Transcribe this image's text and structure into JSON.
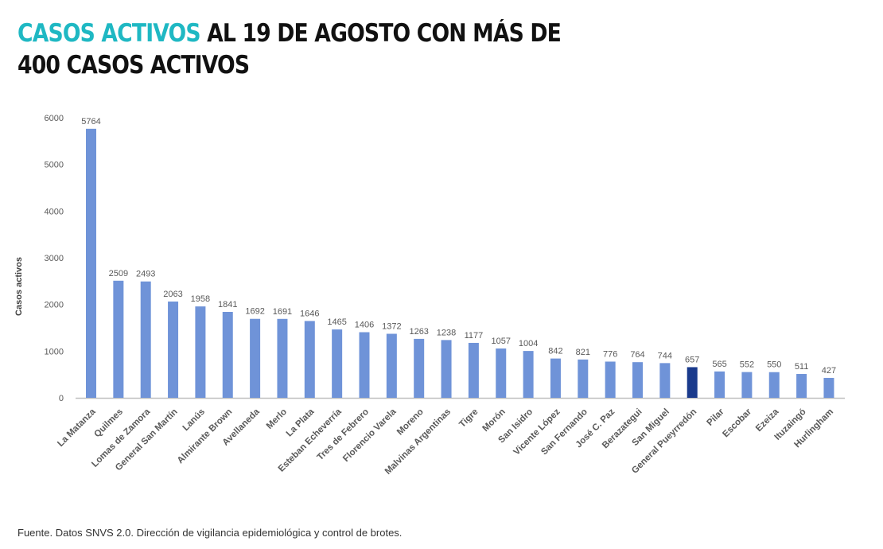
{
  "header": {
    "title_accent": "CASOS ACTIVOS",
    "title_rest_line1": "AL 19 DE AGOSTO CON MÁS DE",
    "title_line2": "400 CASOS ACTIVOS"
  },
  "footer": {
    "source": "Fuente. Datos SNVS 2.0. Dirección de vigilancia epidemiológica y control de brotes."
  },
  "colors": {
    "accent": "#1fb8c3",
    "bar": "#6f93d8",
    "bar_highlight": "#1a3a8c",
    "axis": "#bfbfbf",
    "text": "#595959"
  },
  "chart_data": {
    "type": "bar",
    "title": "CASOS ACTIVOS AL 19 DE AGOSTO CON MÁS DE 400 CASOS ACTIVOS",
    "xlabel": "",
    "ylabel": "Casos activos",
    "ylim": [
      0,
      6000
    ],
    "yticks": [
      0,
      1000,
      2000,
      3000,
      4000,
      5000,
      6000
    ],
    "grid": false,
    "legend": "none",
    "highlighted_category": "General Pueyrredón",
    "categories": [
      "La Matanza",
      "Quilmes",
      "Lomas de Zamora",
      "General San Martín",
      "Lanús",
      "Almirante Brown",
      "Avellaneda",
      "Merlo",
      "La Plata",
      "Esteban Echeverría",
      "Tres de Febrero",
      "Florencio Varela",
      "Moreno",
      "Malvinas Argentinas",
      "Tigre",
      "Morón",
      "San Isidro",
      "Vicente López",
      "San Fernando",
      "José C. Paz",
      "Berazategui",
      "San Miguel",
      "General Pueyrredón",
      "Pilar",
      "Escobar",
      "Ezeiza",
      "Ituzaingó",
      "Hurlingham"
    ],
    "values": [
      5764,
      2509,
      2493,
      2063,
      1958,
      1841,
      1692,
      1691,
      1646,
      1465,
      1406,
      1372,
      1263,
      1238,
      1177,
      1057,
      1004,
      842,
      821,
      776,
      764,
      744,
      657,
      565,
      552,
      550,
      511,
      427
    ]
  }
}
